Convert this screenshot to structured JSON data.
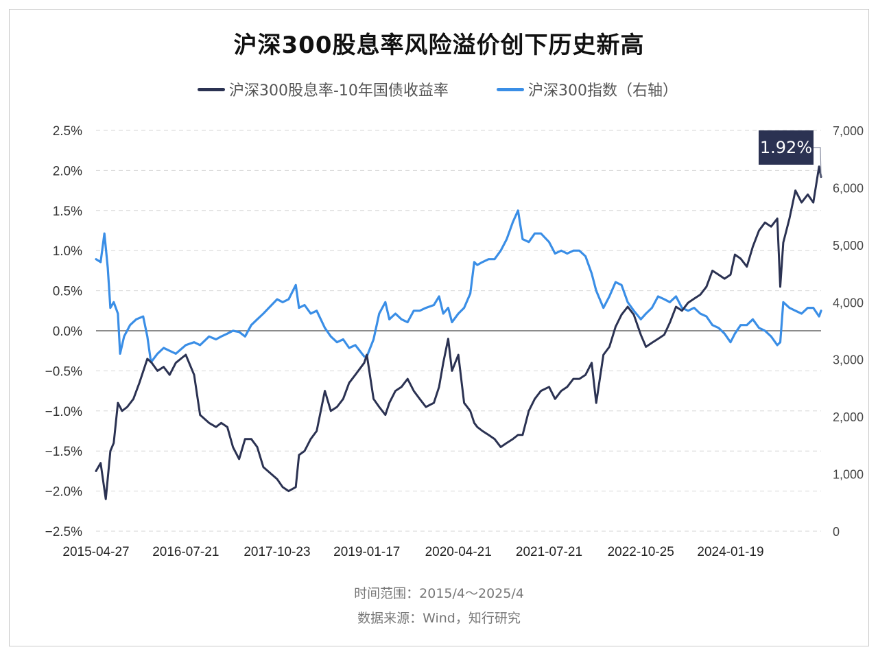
{
  "title": "沪深300股息率风险溢价创下历史新高",
  "colors": {
    "spread": "#2b3252",
    "index": "#3a8ee6",
    "grid": "#d6d6d6",
    "zero": "#666666"
  },
  "footer": {
    "range": "时间范围：2015/4～2025/4",
    "source": "数据来源：Wind，知行研究"
  },
  "callout": "1.92%",
  "chart_data": {
    "type": "line",
    "title": "沪深300股息率风险溢价创下历史新高",
    "legend_position": "top-center",
    "grid": true,
    "x_tick_labels": [
      "2015-04-27",
      "2016-07-21",
      "2017-10-23",
      "2019-01-17",
      "2020-04-21",
      "2021-07-21",
      "2022-10-25",
      "2024-01-19"
    ],
    "y_left": {
      "ylim": [
        -2.5,
        2.5
      ],
      "tick_labels": [
        "2.5%",
        "2.0%",
        "1.5%",
        "1.0%",
        "0.5%",
        "0.0%",
        "−0.5%",
        "−1.0%",
        "−1.5%",
        "−2.0%",
        "−2.5%"
      ]
    },
    "y_right": {
      "ylim": [
        0,
        7000
      ],
      "tick_labels": [
        "7,000",
        "6,000",
        "5,000",
        "4,000",
        "3,000",
        "2,000",
        "1,000",
        "0"
      ]
    },
    "series": [
      {
        "name": "沪深300股息率-10年国债收益率",
        "axis": "left",
        "x": [
          "2015-04-27",
          "2015-05-20",
          "2015-06-15",
          "2015-07-08",
          "2015-07-25",
          "2015-08-15",
          "2015-09-05",
          "2015-10-01",
          "2015-11-01",
          "2015-12-01",
          "2016-01-10",
          "2016-02-01",
          "2016-03-01",
          "2016-04-01",
          "2016-05-01",
          "2016-06-01",
          "2016-07-21",
          "2016-09-01",
          "2016-10-01",
          "2016-11-15",
          "2016-12-20",
          "2017-01-15",
          "2017-02-15",
          "2017-03-15",
          "2017-04-15",
          "2017-05-15",
          "2017-06-15",
          "2017-07-15",
          "2017-08-15",
          "2017-10-23",
          "2017-11-20",
          "2017-12-20",
          "2018-01-25",
          "2018-02-10",
          "2018-03-10",
          "2018-04-10",
          "2018-05-10",
          "2018-06-20",
          "2018-07-20",
          "2018-08-20",
          "2018-09-20",
          "2018-10-20",
          "2018-11-20",
          "2019-01-04",
          "2019-01-17",
          "2019-02-20",
          "2019-03-20",
          "2019-04-20",
          "2019-05-10",
          "2019-06-10",
          "2019-07-10",
          "2019-08-10",
          "2019-09-10",
          "2019-10-10",
          "2019-11-10",
          "2019-12-20",
          "2020-01-15",
          "2020-02-05",
          "2020-03-01",
          "2020-03-20",
          "2020-04-21",
          "2020-05-20",
          "2020-06-20",
          "2020-07-10",
          "2020-07-25",
          "2020-08-20",
          "2020-09-20",
          "2020-10-20",
          "2020-11-20",
          "2020-12-20",
          "2021-01-20",
          "2021-02-15",
          "2021-03-10",
          "2021-04-10",
          "2021-05-10",
          "2021-06-10",
          "2021-07-21",
          "2021-08-20",
          "2021-09-20",
          "2021-10-20",
          "2021-11-20",
          "2021-12-20",
          "2022-01-20",
          "2022-02-20",
          "2022-03-15",
          "2022-04-20",
          "2022-05-20",
          "2022-06-20",
          "2022-07-20",
          "2022-08-20",
          "2022-09-20",
          "2022-10-25",
          "2022-11-20",
          "2022-12-20",
          "2023-01-20",
          "2023-02-20",
          "2023-03-20",
          "2023-04-20",
          "2023-05-20",
          "2023-06-20",
          "2023-07-20",
          "2023-08-20",
          "2023-09-20",
          "2023-10-20",
          "2023-11-20",
          "2023-12-20",
          "2024-01-19",
          "2024-02-10",
          "2024-03-10",
          "2024-04-10",
          "2024-05-10",
          "2024-06-10",
          "2024-07-10",
          "2024-08-10",
          "2024-09-10",
          "2024-09-25",
          "2024-10-10",
          "2024-11-10",
          "2024-12-10",
          "2025-01-10",
          "2025-02-10",
          "2025-03-10",
          "2025-04-08",
          "2025-04-18"
        ],
        "values": [
          -1.75,
          -1.65,
          -2.1,
          -1.5,
          -1.4,
          -0.9,
          -1.0,
          -0.95,
          -0.85,
          -0.65,
          -0.35,
          -0.4,
          -0.5,
          -0.45,
          -0.55,
          -0.4,
          -0.3,
          -0.55,
          -1.05,
          -1.15,
          -1.2,
          -1.15,
          -1.2,
          -1.45,
          -1.6,
          -1.35,
          -1.35,
          -1.45,
          -1.7,
          -1.85,
          -1.95,
          -2.0,
          -1.95,
          -1.55,
          -1.5,
          -1.35,
          -1.25,
          -0.75,
          -1.0,
          -0.95,
          -0.85,
          -0.65,
          -0.55,
          -0.4,
          -0.3,
          -0.85,
          -0.95,
          -1.05,
          -0.9,
          -0.75,
          -0.7,
          -0.6,
          -0.75,
          -0.85,
          -0.95,
          -0.9,
          -0.7,
          -0.4,
          -0.1,
          -0.5,
          -0.3,
          -0.9,
          -1.0,
          -1.15,
          -1.2,
          -1.25,
          -1.3,
          -1.35,
          -1.45,
          -1.4,
          -1.35,
          -1.3,
          -1.3,
          -1.0,
          -0.85,
          -0.75,
          -0.7,
          -0.85,
          -0.75,
          -0.7,
          -0.6,
          -0.6,
          -0.55,
          -0.4,
          -0.9,
          -0.3,
          -0.2,
          0.05,
          0.2,
          0.3,
          0.2,
          -0.05,
          -0.2,
          -0.15,
          -0.1,
          -0.05,
          0.1,
          0.3,
          0.25,
          0.35,
          0.4,
          0.45,
          0.55,
          0.75,
          0.7,
          0.65,
          0.7,
          0.95,
          0.9,
          0.8,
          1.05,
          1.25,
          1.35,
          1.3,
          1.4,
          0.55,
          1.1,
          1.4,
          1.75,
          1.6,
          1.7,
          1.6,
          2.05,
          1.92
        ]
      },
      {
        "name": "沪深300指数（右轴）",
        "axis": "right",
        "x": [
          "2015-04-27",
          "2015-05-20",
          "2015-06-08",
          "2015-06-25",
          "2015-07-08",
          "2015-07-25",
          "2015-08-15",
          "2015-08-26",
          "2015-09-15",
          "2015-10-15",
          "2015-11-15",
          "2015-12-20",
          "2016-01-10",
          "2016-01-28",
          "2016-03-01",
          "2016-04-01",
          "2016-05-01",
          "2016-06-01",
          "2016-07-21",
          "2016-09-01",
          "2016-10-01",
          "2016-11-15",
          "2016-12-20",
          "2017-01-15",
          "2017-02-15",
          "2017-03-15",
          "2017-04-15",
          "2017-05-15",
          "2017-06-15",
          "2017-07-15",
          "2017-08-15",
          "2017-10-23",
          "2017-11-20",
          "2017-12-20",
          "2018-01-25",
          "2018-02-10",
          "2018-03-10",
          "2018-04-10",
          "2018-05-10",
          "2018-06-20",
          "2018-07-20",
          "2018-08-20",
          "2018-09-20",
          "2018-10-20",
          "2018-11-20",
          "2019-01-04",
          "2019-01-17",
          "2019-02-20",
          "2019-03-20",
          "2019-04-20",
          "2019-05-10",
          "2019-06-10",
          "2019-07-10",
          "2019-08-10",
          "2019-09-10",
          "2019-10-10",
          "2019-11-10",
          "2019-12-20",
          "2020-01-15",
          "2020-02-05",
          "2020-03-01",
          "2020-03-20",
          "2020-04-21",
          "2020-05-20",
          "2020-06-20",
          "2020-07-10",
          "2020-07-25",
          "2020-08-20",
          "2020-09-20",
          "2020-10-20",
          "2020-11-20",
          "2020-12-20",
          "2021-01-20",
          "2021-02-15",
          "2021-03-10",
          "2021-04-10",
          "2021-05-10",
          "2021-06-10",
          "2021-07-21",
          "2021-08-20",
          "2021-09-20",
          "2021-10-20",
          "2021-11-20",
          "2021-12-20",
          "2022-01-20",
          "2022-02-20",
          "2022-03-15",
          "2022-04-20",
          "2022-05-20",
          "2022-06-20",
          "2022-07-20",
          "2022-08-20",
          "2022-09-20",
          "2022-10-25",
          "2022-11-20",
          "2022-12-20",
          "2023-01-20",
          "2023-02-20",
          "2023-03-20",
          "2023-04-20",
          "2023-05-20",
          "2023-06-20",
          "2023-07-20",
          "2023-08-20",
          "2023-09-20",
          "2023-10-20",
          "2023-11-20",
          "2023-12-20",
          "2024-01-19",
          "2024-02-10",
          "2024-03-10",
          "2024-04-10",
          "2024-05-10",
          "2024-06-10",
          "2024-07-10",
          "2024-08-10",
          "2024-09-10",
          "2024-09-25",
          "2024-10-10",
          "2024-11-10",
          "2024-12-10",
          "2025-01-10",
          "2025-02-10",
          "2025-03-10",
          "2025-04-08",
          "2025-04-18"
        ],
        "values": [
          4750,
          4700,
          5200,
          4600,
          3900,
          4000,
          3800,
          3100,
          3400,
          3600,
          3700,
          3750,
          3400,
          2950,
          3100,
          3200,
          3150,
          3100,
          3250,
          3300,
          3250,
          3400,
          3350,
          3400,
          3450,
          3500,
          3480,
          3400,
          3600,
          3700,
          3800,
          4050,
          4000,
          4050,
          4300,
          3900,
          3950,
          3800,
          3850,
          3550,
          3400,
          3300,
          3350,
          3200,
          3250,
          3050,
          3050,
          3350,
          3800,
          4000,
          3700,
          3800,
          3700,
          3650,
          3850,
          3850,
          3900,
          3950,
          4100,
          3800,
          3900,
          3650,
          3800,
          3900,
          4150,
          4700,
          4650,
          4700,
          4750,
          4750,
          4900,
          5100,
          5400,
          5600,
          5100,
          5050,
          5200,
          5200,
          5050,
          4850,
          4900,
          4850,
          4900,
          4900,
          4800,
          4500,
          4200,
          3900,
          4100,
          4350,
          4300,
          4000,
          3850,
          3700,
          3800,
          3900,
          4100,
          4050,
          4000,
          4100,
          3900,
          3850,
          3900,
          3800,
          3750,
          3600,
          3550,
          3450,
          3300,
          3450,
          3600,
          3600,
          3700,
          3550,
          3500,
          3400,
          3250,
          3300,
          4000,
          3900,
          3850,
          3800,
          3900,
          3900,
          3750,
          3850
        ]
      }
    ]
  }
}
